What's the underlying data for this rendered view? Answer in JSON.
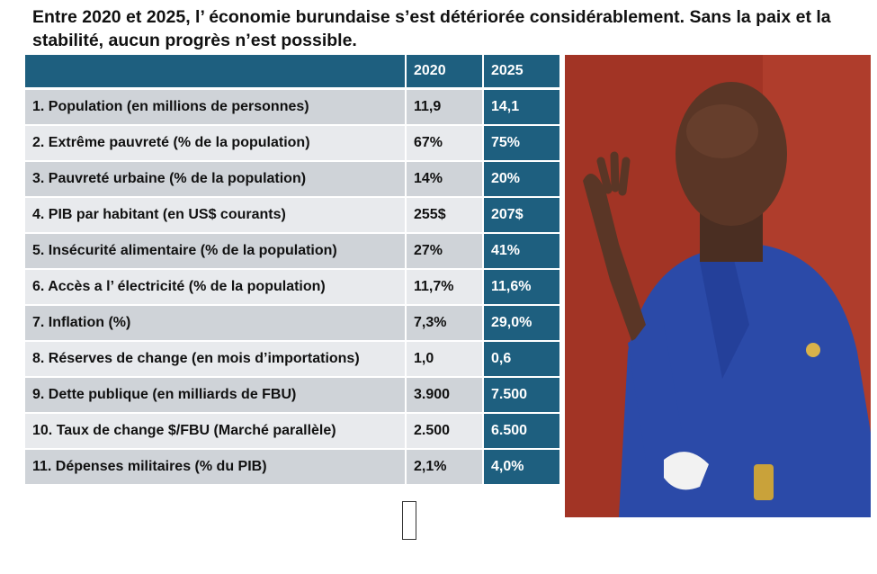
{
  "headline": {
    "line1": "Entre 2020 et 2025, l’ économie burundaise s’est détériorée considérablement. Sans la paix et la",
    "line2": "stabilité, aucun progrès n’est possible."
  },
  "table": {
    "headers": [
      "",
      "2020",
      "2025"
    ],
    "rows": [
      {
        "label": "1. Population (en millions de personnes)",
        "v2020": "11,9",
        "v2025": "14,1"
      },
      {
        "label": "2. Extrême pauvreté (% de la population)",
        "v2020": "67%",
        "v2025": "75%"
      },
      {
        "label": "3. Pauvreté urbaine (% de la population)",
        "v2020": "14%",
        "v2025": "20%"
      },
      {
        "label": "4. PIB par habitant (en US$ courants)",
        "v2020": "255$",
        "v2025": "207$"
      },
      {
        "label": "5. Insécurité alimentaire (% de la population)",
        "v2020": "27%",
        "v2025": "41%"
      },
      {
        "label": "6. Accès a l’ électricité (% de la population)",
        "v2020": "11,7%",
        "v2025": "11,6%"
      },
      {
        "label": "7. Inflation (%)",
        "v2020": "7,3%",
        "v2025": "29,0%"
      },
      {
        "label": "8. Réserves de change (en mois d’importations)",
        "v2020": "1,0",
        "v2025": "0,6"
      },
      {
        "label": "9. Dette publique (en milliards de FBU)",
        "v2020": "3.900",
        "v2025": "7.500"
      },
      {
        "label": "10. Taux de change $/FBU (Marché parallèle)",
        "v2020": "2.500",
        "v2025": "6.500"
      },
      {
        "label": "11. Dépenses militaires (% du PIB)",
        "v2020": "2,1%",
        "v2025": "4,0%"
      }
    ]
  },
  "colors": {
    "header_bg": "#1e5f7f",
    "row_dark": "#cfd3d8",
    "row_light": "#e8eaed",
    "suit_blue": "#2b4aa8",
    "background_red": "#b03a2a"
  },
  "photo": {
    "icon": "man-in-blue-suit-photo"
  }
}
